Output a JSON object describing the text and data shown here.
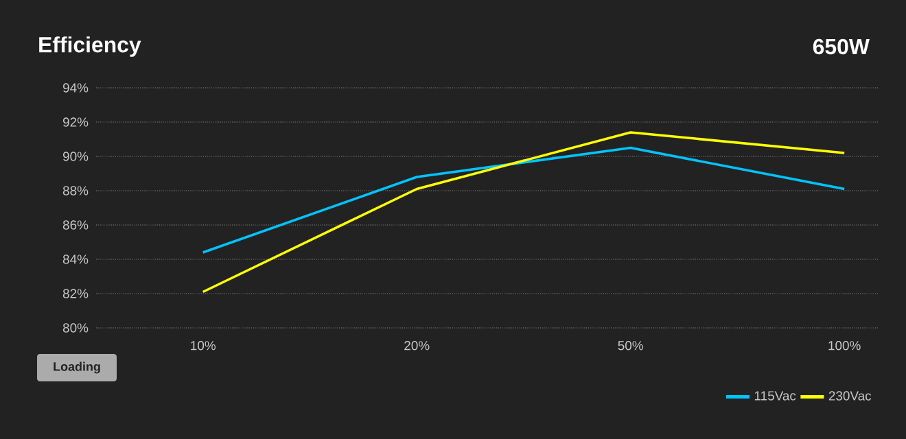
{
  "chart_data": {
    "type": "line",
    "title": "Efficiency",
    "subtitle": "650W",
    "xlabel": "Loading",
    "categories": [
      "10%",
      "20%",
      "50%",
      "100%"
    ],
    "series": [
      {
        "name": "115Vac",
        "color": "#00c3ff",
        "values": [
          84.4,
          88.8,
          90.5,
          88.1
        ]
      },
      {
        "name": "230Vac",
        "color": "#ffff00",
        "values": [
          82.1,
          88.1,
          91.4,
          90.2
        ]
      }
    ],
    "ylim": [
      80,
      94
    ],
    "yticks": [
      {
        "value": 80,
        "label": "80%"
      },
      {
        "value": 82,
        "label": "82%"
      },
      {
        "value": 84,
        "label": "84%"
      },
      {
        "value": 86,
        "label": "86%"
      },
      {
        "value": 88,
        "label": "88%"
      },
      {
        "value": 90,
        "label": "90%"
      },
      {
        "value": 92,
        "label": "92%"
      },
      {
        "value": 94,
        "label": "94%"
      }
    ],
    "grid": "y",
    "legend": "bottom right",
    "line_style": "solid"
  }
}
